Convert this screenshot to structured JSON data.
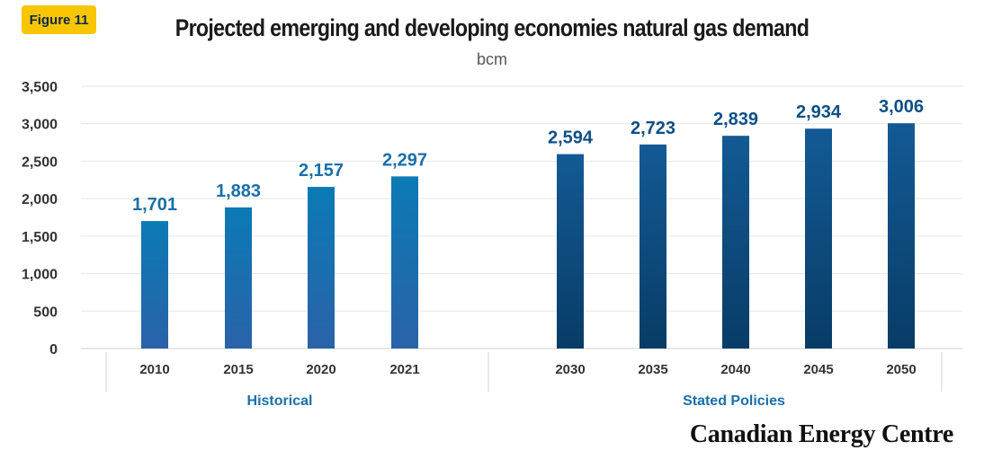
{
  "badge": "Figure 11",
  "brand": "Canadian Energy Centre",
  "colors": {
    "historical_top": "#0b7ab5",
    "historical_bottom": "#2a62a8",
    "policy_top": "#135a95",
    "policy_bottom": "#083c66",
    "grid": "#e6e6e6"
  },
  "chart_data": {
    "type": "bar",
    "title": "Projected emerging and developing economies natural gas demand",
    "subtitle": "bcm",
    "ylim": [
      0,
      3500
    ],
    "yticks": [
      "0",
      "500",
      "1,000",
      "1,500",
      "2,000",
      "2,500",
      "3,000",
      "3,500"
    ],
    "yticks_values": [
      0,
      500,
      1000,
      1500,
      2000,
      2500,
      3000,
      3500
    ],
    "grid": true,
    "categories": [
      "2010",
      "2015",
      "2020",
      "2021",
      "2030",
      "2035",
      "2040",
      "2045",
      "2050"
    ],
    "values": [
      1701,
      1883,
      2157,
      2297,
      2594,
      2723,
      2839,
      2934,
      3006
    ],
    "data_labels": [
      "1,701",
      "1,883",
      "2,157",
      "2,297",
      "2,594",
      "2,723",
      "2,839",
      "2,934",
      "3,006"
    ],
    "groups": [
      {
        "name": "Historical",
        "categories": [
          "2010",
          "2015",
          "2020",
          "2021"
        ]
      },
      {
        "name": "Stated Policies",
        "categories": [
          "2030",
          "2035",
          "2040",
          "2045",
          "2050"
        ]
      }
    ]
  }
}
